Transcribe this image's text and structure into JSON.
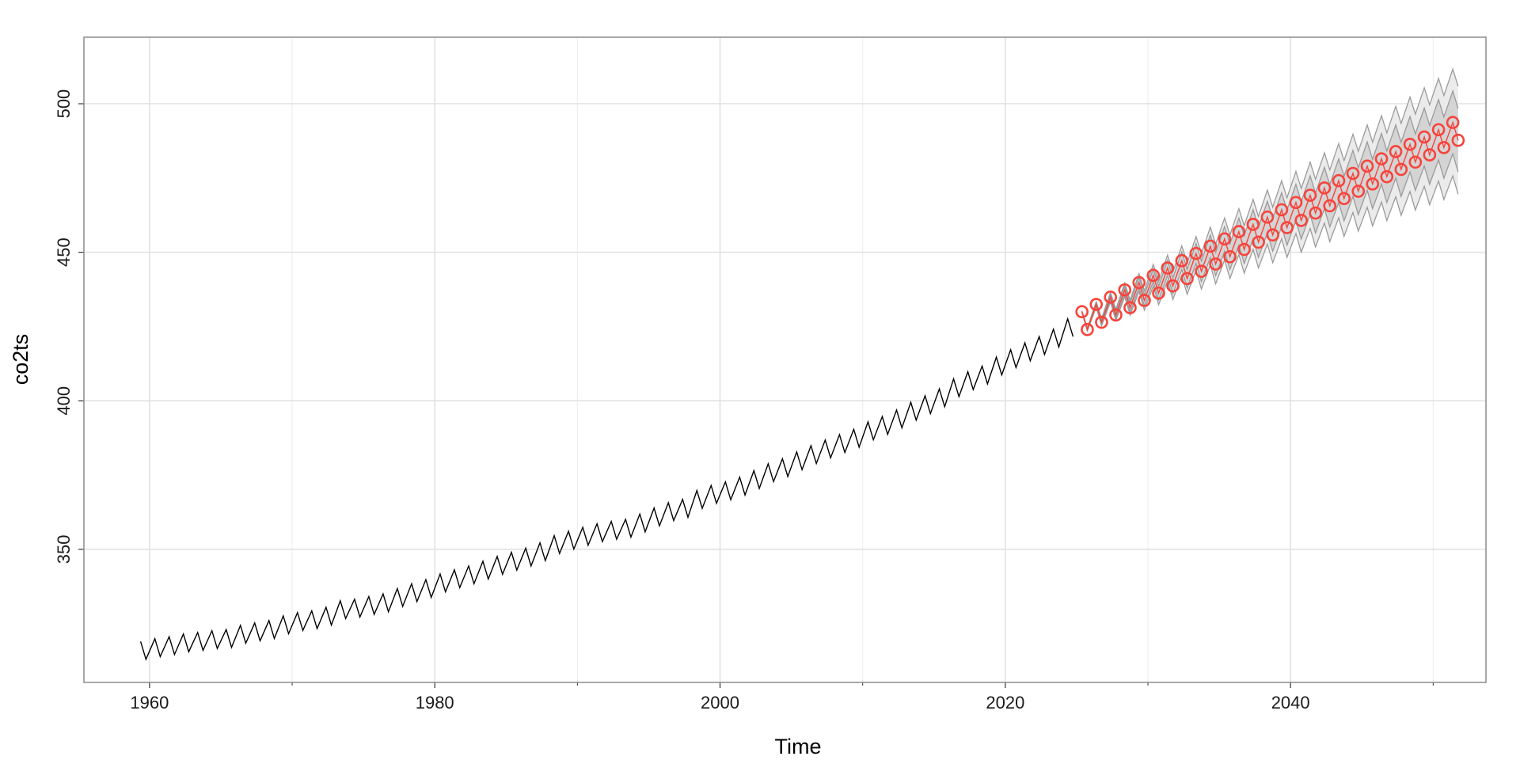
{
  "chart_data": {
    "type": "line",
    "x_label": "Time",
    "y_label": "co2ts",
    "xlim": [
      1955.4,
      2053.7
    ],
    "ylim": [
      305.2,
      522.4
    ],
    "xticks": [
      1960,
      1980,
      2000,
      2020,
      2040
    ],
    "xminorticks": [
      1970,
      1990,
      2010,
      2030,
      2050
    ],
    "yticks": [
      350,
      400,
      450,
      500
    ],
    "grid": true,
    "band_colors": {
      "95": "#ebebeb",
      "80": "#d4d4d4",
      "edge": "#9a9a9a"
    },
    "series": [
      {
        "color": "#000000",
        "x": [
          1959.375,
          1959.75,
          1960.375,
          1960.75,
          1961.375,
          1961.75,
          1962.375,
          1962.75,
          1963.375,
          1963.75,
          1964.375,
          1964.75,
          1965.375,
          1965.75,
          1966.375,
          1966.75,
          1967.375,
          1967.75,
          1968.375,
          1968.75,
          1969.375,
          1969.75,
          1970.375,
          1970.75,
          1971.375,
          1971.75,
          1972.375,
          1972.75,
          1973.375,
          1973.75,
          1974.375,
          1974.75,
          1975.375,
          1975.75,
          1976.375,
          1976.75,
          1977.375,
          1977.75,
          1978.375,
          1978.75,
          1979.375,
          1979.75,
          1980.375,
          1980.75,
          1981.375,
          1981.75,
          1982.375,
          1982.75,
          1983.375,
          1983.75,
          1984.375,
          1984.75,
          1985.375,
          1985.75,
          1986.375,
          1986.75,
          1987.375,
          1987.75,
          1988.375,
          1988.75,
          1989.375,
          1989.75,
          1990.375,
          1990.75,
          1991.375,
          1991.75,
          1992.375,
          1992.75,
          1993.375,
          1993.75,
          1994.375,
          1994.75,
          1995.375,
          1995.75,
          1996.375,
          1996.75,
          1997.375,
          1997.75,
          1998.375,
          1998.75,
          1999.375,
          1999.75,
          2000.375,
          2000.75,
          2001.375,
          2001.75,
          2002.375,
          2002.75,
          2003.375,
          2003.75,
          2004.375,
          2004.75,
          2005.375,
          2005.75,
          2006.375,
          2006.75,
          2007.375,
          2007.75,
          2008.375,
          2008.75,
          2009.375,
          2009.75,
          2010.375,
          2010.75,
          2011.375,
          2011.75,
          2012.375,
          2012.75,
          2013.375,
          2013.75,
          2014.375,
          2014.75,
          2015.375,
          2015.75,
          2016.375,
          2016.75,
          2017.375,
          2017.75,
          2018.375,
          2018.75,
          2019.375,
          2019.75,
          2020.375,
          2020.75,
          2021.375,
          2021.75,
          2022.375,
          2022.75,
          2023.375,
          2023.75,
          2024.375,
          2024.75
        ],
        "values": [
          318.98,
          312.98,
          319.9,
          313.9,
          320.6,
          314.6,
          321.5,
          315.5,
          322.0,
          316.0,
          322.6,
          316.6,
          323.0,
          317.0,
          324.4,
          318.4,
          325.2,
          319.2,
          326.0,
          320.0,
          327.6,
          321.6,
          328.7,
          322.7,
          329.3,
          323.3,
          330.5,
          324.5,
          332.7,
          326.7,
          333.2,
          327.2,
          334.1,
          328.1,
          335.0,
          329.0,
          336.8,
          330.8,
          338.4,
          332.4,
          339.8,
          333.8,
          341.7,
          335.7,
          343.1,
          337.1,
          344.4,
          338.4,
          346.0,
          340.0,
          347.6,
          341.6,
          349.0,
          343.0,
          350.4,
          344.4,
          352.2,
          346.2,
          354.6,
          348.6,
          356.1,
          350.1,
          357.4,
          351.4,
          358.6,
          352.6,
          359.4,
          353.4,
          360.1,
          354.1,
          361.9,
          355.9,
          363.9,
          357.9,
          365.7,
          359.7,
          366.8,
          360.8,
          369.8,
          363.8,
          371.5,
          365.5,
          372.7,
          366.7,
          374.3,
          368.3,
          376.5,
          370.5,
          378.8,
          372.8,
          380.5,
          374.5,
          382.8,
          376.8,
          384.9,
          378.9,
          386.8,
          380.8,
          388.6,
          382.6,
          390.4,
          384.4,
          392.9,
          386.9,
          394.7,
          388.7,
          396.9,
          390.9,
          399.5,
          393.5,
          401.7,
          395.7,
          404.0,
          398.0,
          407.4,
          401.4,
          409.8,
          403.8,
          411.7,
          405.7,
          414.7,
          408.7,
          417.2,
          411.2,
          419.5,
          413.5,
          421.6,
          415.6,
          424.1,
          418.1,
          427.6,
          421.6
        ]
      },
      {
        "color": "#f8433b",
        "marker": "circle",
        "x": [
          2025.375,
          2025.75,
          2026.375,
          2026.75,
          2027.375,
          2027.75,
          2028.375,
          2028.75,
          2029.375,
          2029.75,
          2030.375,
          2030.75,
          2031.375,
          2031.75,
          2032.375,
          2032.75,
          2033.375,
          2033.75,
          2034.375,
          2034.75,
          2035.375,
          2035.75,
          2036.375,
          2036.75,
          2037.375,
          2037.75,
          2038.375,
          2038.75,
          2039.375,
          2039.75,
          2040.375,
          2040.75,
          2041.375,
          2041.75,
          2042.375,
          2042.75,
          2043.375,
          2043.75,
          2044.375,
          2044.75,
          2045.375,
          2045.75,
          2046.375,
          2046.75,
          2047.375,
          2047.75,
          2048.375,
          2048.75,
          2049.375,
          2049.75,
          2050.375,
          2050.75,
          2051.375,
          2051.75
        ],
        "values": [
          430.0,
          424.0,
          432.45,
          426.45,
          434.9,
          428.9,
          437.35,
          431.35,
          439.8,
          433.8,
          442.25,
          436.25,
          444.7,
          438.7,
          447.15,
          441.15,
          449.6,
          443.6,
          452.05,
          446.05,
          454.5,
          448.5,
          456.95,
          450.95,
          459.4,
          453.4,
          461.85,
          455.85,
          464.3,
          458.3,
          466.75,
          460.75,
          469.2,
          463.2,
          471.65,
          465.65,
          474.1,
          468.1,
          476.55,
          470.55,
          479.0,
          473.0,
          481.45,
          475.45,
          483.9,
          477.9,
          486.35,
          480.35,
          488.8,
          482.8,
          491.25,
          485.25,
          493.7,
          487.7
        ],
        "lower95": [
          429.74,
          423.49,
          431.51,
          425.26,
          433.28,
          427.03,
          435.05,
          428.8,
          436.82,
          430.57,
          438.59,
          432.34,
          440.36,
          434.11,
          442.13,
          435.88,
          443.9,
          437.65,
          445.67,
          439.42,
          447.44,
          441.19,
          449.21,
          442.96,
          450.98,
          444.73,
          452.75,
          446.5,
          454.52,
          448.27,
          456.29,
          450.04,
          458.06,
          451.81,
          459.83,
          453.58,
          461.6,
          455.35,
          463.37,
          457.12,
          465.14,
          458.89,
          466.91,
          460.66,
          468.68,
          462.43,
          470.45,
          464.2,
          472.22,
          465.97,
          473.99,
          467.74,
          475.76,
          469.51
        ],
        "upper95": [
          430.26,
          424.51,
          433.39,
          427.64,
          436.52,
          430.77,
          439.65,
          433.9,
          442.78,
          437.03,
          445.91,
          440.16,
          449.04,
          443.29,
          452.17,
          446.42,
          455.3,
          449.55,
          458.43,
          452.68,
          461.56,
          455.81,
          464.69,
          458.94,
          467.82,
          462.07,
          470.95,
          465.2,
          474.08,
          468.33,
          477.21,
          471.46,
          480.34,
          474.59,
          483.47,
          477.72,
          486.6,
          480.85,
          489.73,
          483.98,
          492.86,
          487.11,
          495.99,
          490.24,
          499.12,
          493.37,
          502.25,
          496.5,
          505.38,
          499.63,
          508.51,
          502.76,
          511.64,
          505.89
        ],
        "lower80": [
          429.85,
          423.7,
          431.9,
          425.75,
          433.95,
          427.8,
          436.0,
          429.85,
          438.05,
          431.9,
          440.1,
          433.95,
          442.15,
          436.0,
          444.2,
          438.05,
          446.25,
          440.1,
          448.3,
          442.15,
          450.35,
          444.2,
          452.4,
          446.25,
          454.45,
          448.3,
          456.5,
          450.35,
          458.55,
          452.4,
          460.6,
          454.45,
          462.65,
          456.5,
          464.7,
          458.55,
          466.75,
          460.6,
          468.8,
          462.65,
          470.85,
          464.7,
          472.9,
          466.75,
          474.95,
          468.8,
          477.0,
          470.85,
          479.05,
          472.9,
          481.1,
          474.95,
          483.15,
          477.0
        ],
        "upper80": [
          430.15,
          424.3,
          433.0,
          427.15,
          435.85,
          430.0,
          438.7,
          432.85,
          441.55,
          435.7,
          444.4,
          438.55,
          447.25,
          441.4,
          450.1,
          444.25,
          452.95,
          447.1,
          455.8,
          449.95,
          458.65,
          452.8,
          461.5,
          455.65,
          464.35,
          458.5,
          467.2,
          461.35,
          470.05,
          464.2,
          472.9,
          467.05,
          475.75,
          469.9,
          478.6,
          472.75,
          481.45,
          475.6,
          484.3,
          478.45,
          487.15,
          481.3,
          490.0,
          484.15,
          492.85,
          487.0,
          495.7,
          489.85,
          498.55,
          492.7,
          501.4,
          495.55,
          504.25,
          498.4
        ]
      }
    ]
  }
}
